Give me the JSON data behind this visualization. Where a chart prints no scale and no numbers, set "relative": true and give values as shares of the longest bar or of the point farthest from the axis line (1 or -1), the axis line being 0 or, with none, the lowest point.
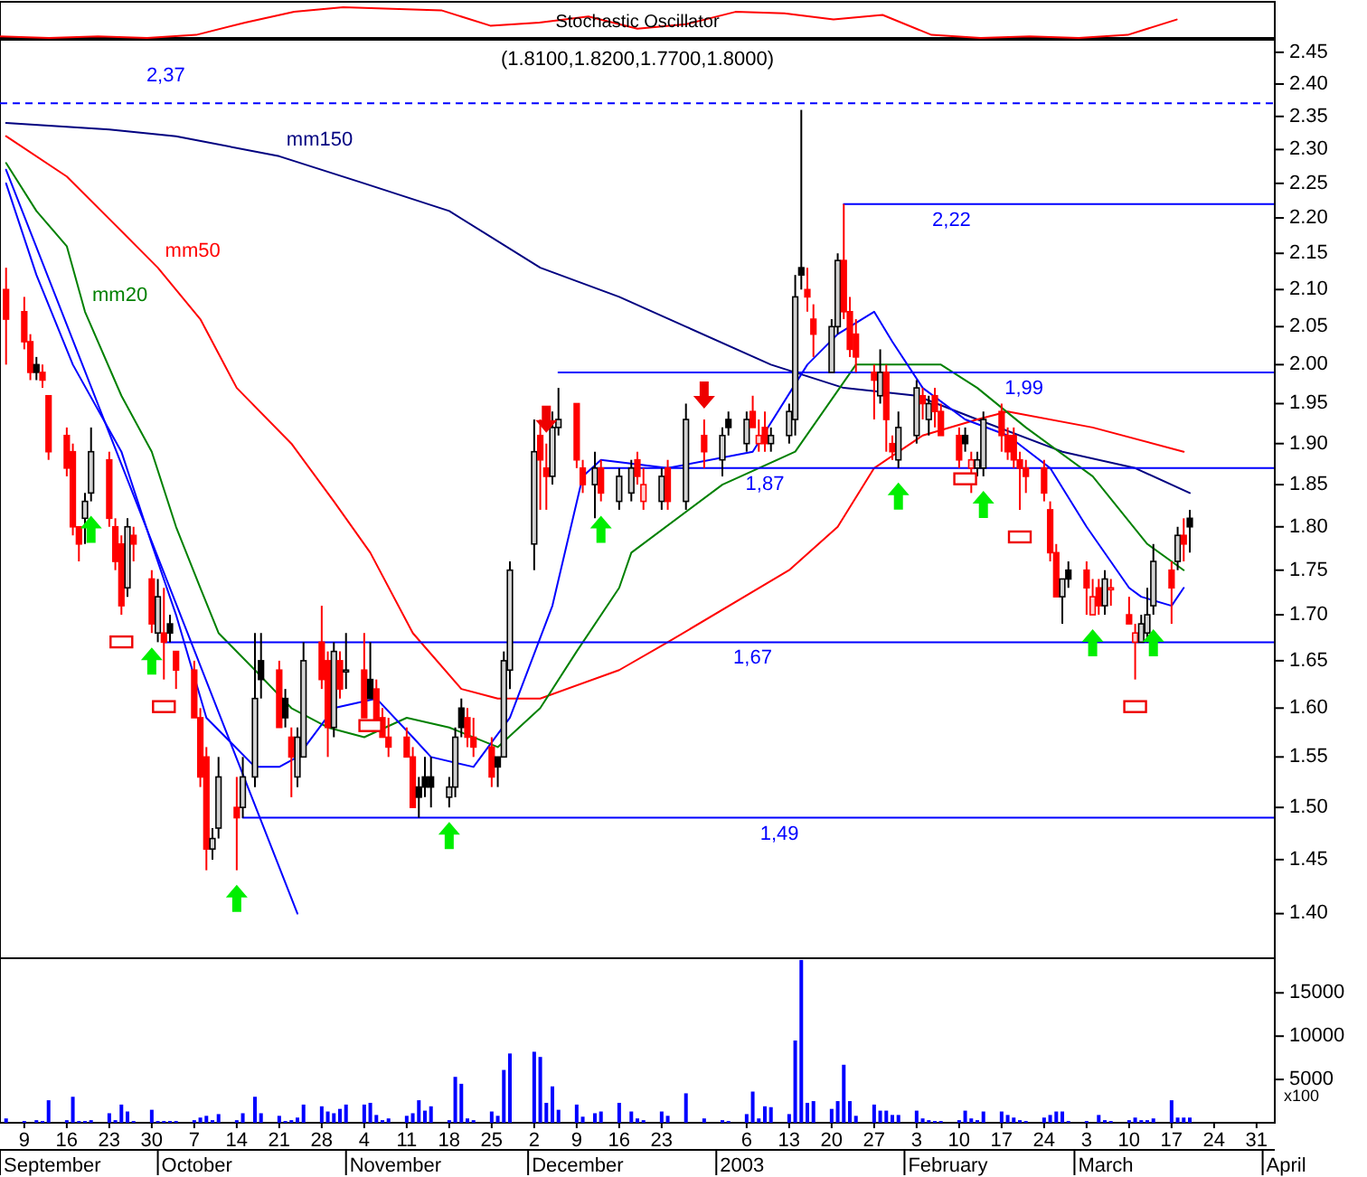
{
  "chart_data": [
    {
      "type": "line",
      "title": "Stochastic Oscillator",
      "relative": true,
      "tick_labels": false,
      "categories": [
        null,
        null,
        null,
        null,
        null,
        null,
        null,
        null,
        null,
        null,
        null,
        null,
        null,
        null,
        null,
        null,
        null,
        null,
        null,
        null,
        null,
        null,
        null,
        null,
        null,
        null,
        null
      ],
      "series": [
        {
          "type": "line",
          "color": "#ff0000",
          "values": [
            0.05,
            0,
            0.05,
            0,
            0.1,
            0.5,
            0.85,
            1,
            0.95,
            0.9,
            0.4,
            0.5,
            0.7,
            0.3,
            0.45,
            0.85,
            0.8,
            0.6,
            0.75,
            0.1,
            0,
            0.05,
            0,
            0.1,
            0.6,
            null,
            null
          ]
        }
      ]
    },
    {
      "type": "candlestick",
      "title": "(1.8100,1.8200,1.7700,1.8000)",
      "log": "y",
      "tick_labels": "y",
      "xlim": [
        "2002-09-05",
        "2003-04-03"
      ],
      "ylim": [
        1.36,
        2.47
      ],
      "yticks": [
        {
          "value": 1.4,
          "label": "1.40"
        },
        {
          "value": 1.45,
          "label": "1.45"
        },
        {
          "value": 1.5,
          "label": "1.50"
        },
        {
          "value": 1.55,
          "label": "1.55"
        },
        {
          "value": 1.6,
          "label": "1.60"
        },
        {
          "value": 1.65,
          "label": "1.65"
        },
        {
          "value": 1.7,
          "label": "1.70"
        },
        {
          "value": 1.75,
          "label": "1.75"
        },
        {
          "value": 1.8,
          "label": "1.80"
        },
        {
          "value": 1.85,
          "label": "1.85"
        },
        {
          "value": 1.9,
          "label": "1.90"
        },
        {
          "value": 1.95,
          "label": "1.95"
        },
        {
          "value": 2.0,
          "label": "2.00"
        },
        {
          "value": 2.05,
          "label": "2.05"
        },
        {
          "value": 2.1,
          "label": "2.10"
        },
        {
          "value": 2.15,
          "label": "2.15"
        },
        {
          "value": 2.2,
          "label": "2.20"
        },
        {
          "value": 2.25,
          "label": "2.25"
        },
        {
          "value": 2.3,
          "label": "2.30"
        },
        {
          "value": 2.35,
          "label": "2.35"
        },
        {
          "value": 2.4,
          "label": "2.40"
        },
        {
          "value": 2.45,
          "label": "2.45"
        }
      ],
      "colors": [
        "#ff0000",
        "#ff0000",
        "#ff0000",
        "#000000",
        "#ff0000",
        "#ff0000",
        "#ff0000",
        "#ff0000",
        "#ff0000",
        "#000000",
        "#000000",
        "#ff0000",
        "#ff0000",
        "#ff0000",
        "#000000",
        "#ff0000",
        "#ff0000",
        "#000000",
        "#ff0000",
        "#000000",
        "#ff0000",
        "#ff0000",
        "#ff0000",
        "#ff0000",
        "#000000",
        "#000000",
        "#ff0000",
        "#000000",
        "#000000",
        "#000000",
        "#ff0000",
        "#000000",
        "#ff0000",
        "#000000",
        "#000000",
        "#ff0000",
        "#ff0000",
        "#000000",
        "#ff0000",
        "#000000",
        "#ff0000",
        "#000000",
        "#ff0000",
        "#ff0000",
        "#ff0000",
        "#ff0000",
        "#ff0000",
        "#000000",
        "#000000",
        "#000000",
        "#000000",
        "#000000",
        "#000000",
        "#ff0000",
        "#ff0000",
        "#ff0000",
        "#000000",
        "#000000",
        "#000000",
        "#000000",
        "#ff0000",
        "#ff0000",
        "#000000",
        "#000000",
        "#ff0000",
        "#ff0000",
        "#000000",
        "#ff0000",
        "#000000",
        "#000000",
        "#ff0000",
        "#ff0000",
        "#000000",
        "#ff0000",
        "#000000",
        "#ff0000",
        "#000000",
        "#000000",
        "#000000",
        "#ff0000",
        "#ff0000",
        "#ff0000",
        "#000000",
        "#000000",
        "#000000",
        "#000000",
        "#ff0000",
        "#ff0000",
        "#000000",
        "#000000",
        "#ff0000",
        "#ff0000",
        "#ff0000",
        "#ff0000",
        "#000000",
        "#ff0000",
        "#ff0000",
        "#000000",
        "#000000",
        "#ff0000",
        "#000000",
        "#ff0000",
        "#ff0000",
        "#ff0000",
        "#000000",
        "#ff0000",
        "#000000",
        "#000000",
        "#ff0000",
        "#ff0000",
        "#ff0000",
        "#ff0000",
        "#ff0000",
        "#ff0000",
        "#ff0000",
        "#ff0000",
        "#000000",
        "#000000",
        "#ff0000",
        "#ff0000",
        "#ff0000",
        "#000000",
        "#ff0000",
        "#ff0000",
        "#ff0000",
        "#000000",
        "#000000",
        "#000000",
        "#ff0000",
        "#000000",
        "#ff0000",
        "#000000"
      ],
      "x": [
        "2002-09-06",
        "2002-09-09",
        "2002-09-10",
        "2002-09-11",
        "2002-09-12",
        "2002-09-13",
        "2002-09-16",
        "2002-09-17",
        "2002-09-18",
        "2002-09-19",
        "2002-09-20",
        "2002-09-23",
        "2002-09-24",
        "2002-09-25",
        "2002-09-26",
        "2002-09-27",
        "2002-09-30",
        "2002-10-01",
        "2002-10-02",
        "2002-10-03",
        "2002-10-04",
        "2002-10-07",
        "2002-10-08",
        "2002-10-09",
        "2002-10-10",
        "2002-10-11",
        "2002-10-14",
        "2002-10-15",
        "2002-10-17",
        "2002-10-18",
        "2002-10-21",
        "2002-10-22",
        "2002-10-23",
        "2002-10-24",
        "2002-10-25",
        "2002-10-28",
        "2002-10-29",
        "2002-10-30",
        "2002-10-31",
        "2002-11-01",
        "2002-11-04",
        "2002-11-05",
        "2002-11-06",
        "2002-11-07",
        "2002-11-08",
        "2002-11-11",
        "2002-11-12",
        "2002-11-13",
        "2002-11-14",
        "2002-11-15",
        "2002-11-18",
        "2002-11-19",
        "2002-11-20",
        "2002-11-21",
        "2002-11-22",
        "2002-11-25",
        "2002-11-26",
        "2002-11-27",
        "2002-11-28",
        "2002-12-02",
        "2002-12-03",
        "2002-12-04",
        "2002-12-05",
        "2002-12-06",
        "2002-12-09",
        "2002-12-10",
        "2002-12-12",
        "2002-12-13",
        "2002-12-16",
        "2002-12-18",
        "2002-12-19",
        "2002-12-20",
        "2002-12-23",
        "2002-12-24",
        "2002-12-27",
        "2002-12-30",
        "2003-01-02",
        "2003-01-03",
        "2003-01-06",
        "2003-01-07",
        "2003-01-08",
        "2003-01-09",
        "2003-01-10",
        "2003-01-13",
        "2003-01-14",
        "2003-01-15",
        "2003-01-16",
        "2003-01-17",
        "2003-01-20",
        "2003-01-21",
        "2003-01-22",
        "2003-01-23",
        "2003-01-24",
        "2003-01-27",
        "2003-01-28",
        "2003-01-29",
        "2003-01-30",
        "2003-01-31",
        "2003-02-03",
        "2003-02-04",
        "2003-02-05",
        "2003-02-06",
        "2003-02-07",
        "2003-02-10",
        "2003-02-11",
        "2003-02-12",
        "2003-02-13",
        "2003-02-14",
        "2003-02-17",
        "2003-02-18",
        "2003-02-19",
        "2003-02-20",
        "2003-02-21",
        "2003-02-24",
        "2003-02-25",
        "2003-02-26",
        "2003-02-27",
        "2003-02-28",
        "2003-03-03",
        "2003-03-04",
        "2003-03-05",
        "2003-03-06",
        "2003-03-07",
        "2003-03-10",
        "2003-03-11",
        "2003-03-12",
        "2003-03-13",
        "2003-03-14",
        "2003-03-17",
        "2003-03-18",
        "2003-03-19",
        "2003-03-20"
      ],
      "ohlc": [
        [
          2.1,
          2.13,
          2.0,
          2.06
        ],
        [
          2.07,
          2.09,
          2.02,
          2.03
        ],
        [
          2.03,
          2.04,
          1.98,
          1.99
        ],
        [
          2.0,
          2.01,
          1.98,
          1.99
        ],
        [
          1.99,
          2.0,
          1.97,
          1.98
        ],
        [
          1.96,
          1.96,
          1.88,
          1.89
        ],
        [
          1.91,
          1.92,
          1.86,
          1.87
        ],
        [
          1.89,
          1.9,
          1.79,
          1.8
        ],
        [
          1.8,
          1.8,
          1.76,
          1.78
        ],
        [
          1.81,
          1.84,
          1.78,
          1.83
        ],
        [
          1.84,
          1.92,
          1.83,
          1.89
        ],
        [
          1.88,
          1.89,
          1.8,
          1.81
        ],
        [
          1.8,
          1.81,
          1.75,
          1.76
        ],
        [
          1.78,
          1.79,
          1.7,
          1.71
        ],
        [
          1.73,
          1.81,
          1.72,
          1.8
        ],
        [
          1.79,
          1.8,
          1.76,
          1.78
        ],
        [
          1.74,
          1.75,
          1.68,
          1.69
        ],
        [
          1.68,
          1.74,
          1.67,
          1.72
        ],
        [
          1.68,
          1.73,
          1.63,
          1.67
        ],
        [
          1.69,
          1.7,
          1.67,
          1.68
        ],
        [
          1.66,
          1.66,
          1.62,
          1.64
        ],
        [
          1.64,
          1.65,
          1.59,
          1.59
        ],
        [
          1.59,
          1.6,
          1.52,
          1.53
        ],
        [
          1.55,
          1.56,
          1.44,
          1.46
        ],
        [
          1.46,
          1.48,
          1.45,
          1.47
        ],
        [
          1.48,
          1.55,
          1.47,
          1.53
        ],
        [
          1.5,
          1.53,
          1.44,
          1.49
        ],
        [
          1.5,
          1.55,
          1.49,
          1.53
        ],
        [
          1.53,
          1.68,
          1.52,
          1.61
        ],
        [
          1.65,
          1.68,
          1.61,
          1.63
        ],
        [
          1.64,
          1.65,
          1.58,
          1.58
        ],
        [
          1.61,
          1.62,
          1.58,
          1.59
        ],
        [
          1.57,
          1.58,
          1.51,
          1.55
        ],
        [
          1.53,
          1.58,
          1.52,
          1.57
        ],
        [
          1.55,
          1.67,
          1.55,
          1.65
        ],
        [
          1.67,
          1.71,
          1.62,
          1.63
        ],
        [
          1.65,
          1.66,
          1.55,
          1.58
        ],
        [
          1.58,
          1.67,
          1.57,
          1.66
        ],
        [
          1.65,
          1.66,
          1.61,
          1.62
        ],
        [
          1.64,
          1.68,
          1.62,
          1.64
        ],
        [
          1.64,
          1.68,
          1.59,
          1.59
        ],
        [
          1.63,
          1.67,
          1.61,
          1.61
        ],
        [
          1.62,
          1.63,
          1.58,
          1.58
        ],
        [
          1.59,
          1.6,
          1.57,
          1.57
        ],
        [
          1.57,
          1.59,
          1.55,
          1.56
        ],
        [
          1.57,
          1.58,
          1.55,
          1.55
        ],
        [
          1.55,
          1.56,
          1.5,
          1.5
        ],
        [
          1.52,
          1.53,
          1.49,
          1.51
        ],
        [
          1.53,
          1.55,
          1.51,
          1.52
        ],
        [
          1.53,
          1.55,
          1.5,
          1.52
        ],
        [
          1.51,
          1.53,
          1.5,
          1.52
        ],
        [
          1.52,
          1.58,
          1.51,
          1.57
        ],
        [
          1.6,
          1.61,
          1.57,
          1.58
        ],
        [
          1.59,
          1.6,
          1.56,
          1.57
        ],
        [
          1.57,
          1.59,
          1.55,
          1.56
        ],
        [
          1.56,
          1.57,
          1.52,
          1.53
        ],
        [
          1.55,
          1.55,
          1.52,
          1.54
        ],
        [
          1.55,
          1.66,
          1.55,
          1.65
        ],
        [
          1.64,
          1.76,
          1.62,
          1.75
        ],
        [
          1.78,
          1.93,
          1.75,
          1.89
        ],
        [
          1.91,
          1.93,
          1.82,
          1.88
        ],
        [
          1.87,
          1.9,
          1.82,
          1.86
        ],
        [
          1.86,
          1.94,
          1.85,
          1.92
        ],
        [
          1.92,
          1.97,
          1.91,
          1.93
        ],
        [
          1.95,
          1.95,
          1.87,
          1.88
        ],
        [
          1.87,
          1.88,
          1.84,
          1.85
        ],
        [
          1.85,
          1.89,
          1.81,
          1.87
        ],
        [
          1.87,
          1.88,
          1.83,
          1.84
        ],
        [
          1.83,
          1.87,
          1.82,
          1.86
        ],
        [
          1.84,
          1.88,
          1.83,
          1.87
        ],
        [
          1.88,
          1.89,
          1.85,
          1.86
        ],
        [
          1.83,
          1.87,
          1.82,
          1.85
        ],
        [
          1.83,
          1.87,
          1.82,
          1.86
        ],
        [
          1.87,
          1.88,
          1.82,
          1.83
        ],
        [
          1.83,
          1.95,
          1.82,
          1.93
        ],
        [
          1.91,
          1.93,
          1.87,
          1.89
        ],
        [
          1.88,
          1.92,
          1.86,
          1.91
        ],
        [
          1.93,
          1.94,
          1.91,
          1.92
        ],
        [
          1.9,
          1.94,
          1.89,
          1.93
        ],
        [
          1.94,
          1.96,
          1.92,
          1.92
        ],
        [
          1.9,
          1.93,
          1.89,
          1.91
        ],
        [
          1.92,
          1.94,
          1.89,
          1.9
        ],
        [
          1.9,
          1.92,
          1.89,
          1.91
        ],
        [
          1.91,
          1.95,
          1.9,
          1.94
        ],
        [
          1.93,
          2.12,
          1.91,
          2.09
        ],
        [
          2.13,
          2.36,
          2.1,
          2.12
        ],
        [
          2.1,
          2.13,
          2.07,
          2.09
        ],
        [
          2.06,
          2.08,
          2.01,
          2.04
        ],
        [
          1.99,
          2.06,
          1.99,
          2.05
        ],
        [
          2.05,
          2.15,
          2.04,
          2.14
        ],
        [
          2.14,
          2.22,
          2.06,
          2.07
        ],
        [
          2.07,
          2.09,
          2.01,
          2.02
        ],
        [
          2.04,
          2.06,
          1.99,
          2.01
        ],
        [
          1.99,
          2.0,
          1.93,
          1.98
        ],
        [
          1.96,
          2.02,
          1.95,
          1.99
        ],
        [
          1.99,
          2.0,
          1.89,
          1.93
        ],
        [
          1.9,
          1.91,
          1.88,
          1.89
        ],
        [
          1.88,
          1.94,
          1.87,
          1.92
        ],
        [
          1.91,
          1.98,
          1.9,
          1.97
        ],
        [
          1.96,
          1.97,
          1.93,
          1.95
        ],
        [
          1.93,
          1.96,
          1.91,
          1.95
        ],
        [
          1.96,
          1.97,
          1.92,
          1.94
        ],
        [
          1.94,
          1.95,
          1.91,
          1.91
        ],
        [
          1.91,
          1.92,
          1.87,
          1.88
        ],
        [
          1.91,
          1.92,
          1.89,
          1.9
        ],
        [
          1.87,
          1.89,
          1.84,
          1.88
        ],
        [
          1.87,
          1.89,
          1.86,
          1.88
        ],
        [
          1.87,
          1.94,
          1.86,
          1.93
        ],
        [
          1.94,
          1.95,
          1.89,
          1.91
        ],
        [
          1.91,
          1.92,
          1.88,
          1.89
        ],
        [
          1.91,
          1.92,
          1.87,
          1.88
        ],
        [
          1.88,
          1.89,
          1.82,
          1.87
        ],
        [
          1.87,
          1.88,
          1.84,
          1.86
        ],
        [
          1.87,
          1.88,
          1.83,
          1.84
        ],
        [
          1.82,
          1.83,
          1.76,
          1.77
        ],
        [
          1.77,
          1.78,
          1.72,
          1.72
        ],
        [
          1.72,
          1.74,
          1.69,
          1.74
        ],
        [
          1.75,
          1.76,
          1.73,
          1.74
        ],
        [
          1.75,
          1.76,
          1.7,
          1.73
        ],
        [
          1.7,
          1.74,
          1.7,
          1.72
        ],
        [
          1.73,
          1.74,
          1.7,
          1.71
        ],
        [
          1.71,
          1.75,
          1.7,
          1.74
        ],
        [
          1.73,
          1.74,
          1.71,
          1.73
        ],
        [
          1.7,
          1.72,
          1.69,
          1.69
        ],
        [
          1.67,
          1.69,
          1.63,
          1.68
        ],
        [
          1.67,
          1.7,
          1.67,
          1.69
        ],
        [
          1.68,
          1.73,
          1.67,
          1.7
        ],
        [
          1.71,
          1.78,
          1.7,
          1.76
        ],
        [
          1.75,
          1.76,
          1.69,
          1.73
        ],
        [
          1.76,
          1.8,
          1.75,
          1.79
        ],
        [
          1.79,
          1.81,
          1.76,
          1.78
        ],
        [
          1.81,
          1.82,
          1.77,
          1.8
        ]
      ],
      "ref_lines": [
        {
          "axis": "y",
          "value": 2.37,
          "label": "2,37",
          "color": "#0000ff",
          "line_style": "dashed"
        }
      ],
      "series": [
        {
          "type": "line",
          "name": "mm150",
          "color": "#000080",
          "x": [
            "2002-09-06",
            "2002-09-23",
            "2002-10-04",
            "2002-10-21",
            "2002-11-04",
            "2002-11-18",
            "2002-12-03",
            "2002-12-16",
            "2002-12-27",
            "2003-01-10",
            "2003-01-22",
            "2003-02-03",
            "2003-02-13",
            "2003-02-27",
            "2003-03-11",
            "2003-03-20"
          ],
          "values": [
            2.34,
            2.33,
            2.32,
            2.29,
            2.25,
            2.21,
            2.13,
            2.09,
            2.05,
            2.0,
            1.97,
            1.96,
            1.93,
            1.89,
            1.87,
            1.84
          ]
        },
        {
          "type": "line",
          "name": "mm50",
          "color": "#ff0000",
          "x": [
            "2002-09-06",
            "2002-09-16",
            "2002-09-24",
            "2002-10-01",
            "2002-10-08",
            "2002-10-14",
            "2002-10-23",
            "2002-10-30",
            "2002-11-05",
            "2002-11-12",
            "2002-11-20",
            "2002-11-26",
            "2002-12-03",
            "2002-12-16",
            "2002-12-24",
            "2003-01-13",
            "2003-01-21",
            "2003-01-27",
            "2003-02-04",
            "2003-02-13",
            "2003-02-18",
            "2003-03-04",
            "2003-03-19"
          ],
          "values": [
            2.32,
            2.26,
            2.19,
            2.13,
            2.06,
            1.97,
            1.9,
            1.83,
            1.77,
            1.68,
            1.62,
            1.61,
            1.61,
            1.64,
            1.67,
            1.75,
            1.8,
            1.87,
            1.91,
            1.93,
            1.94,
            1.92,
            1.89
          ]
        },
        {
          "type": "line",
          "name": "mm20",
          "color": "#008000",
          "x": [
            "2002-09-06",
            "2002-09-11",
            "2002-09-16",
            "2002-09-19",
            "2002-09-25",
            "2002-09-30",
            "2002-10-04",
            "2002-10-08",
            "2002-10-11",
            "2002-10-17",
            "2002-10-23",
            "2002-10-29",
            "2002-11-04",
            "2002-11-11",
            "2002-11-18",
            "2002-11-26",
            "2002-12-03",
            "2002-12-09",
            "2002-12-16",
            "2002-12-18",
            "2003-01-02",
            "2003-01-14",
            "2003-01-24",
            "2003-01-28",
            "2003-02-07",
            "2003-02-13",
            "2003-02-21",
            "2003-03-04",
            "2003-03-13",
            "2003-03-19"
          ],
          "values": [
            2.28,
            2.21,
            2.16,
            2.07,
            1.96,
            1.89,
            1.8,
            1.73,
            1.68,
            1.64,
            1.6,
            1.58,
            1.57,
            1.59,
            1.58,
            1.56,
            1.6,
            1.66,
            1.73,
            1.77,
            1.85,
            1.89,
            2.0,
            2.0,
            2.0,
            1.97,
            1.92,
            1.86,
            1.78,
            1.75
          ]
        },
        {
          "type": "line",
          "color": "#0000ff",
          "x": [
            "2002-09-06",
            "2002-09-11",
            "2002-09-17",
            "2002-09-25",
            "2002-09-30",
            "2002-10-04",
            "2002-10-09",
            "2002-10-17",
            "2002-10-21",
            "2002-10-24",
            "2002-10-30",
            "2002-11-06",
            "2002-11-12",
            "2002-11-15",
            "2002-11-22",
            "2002-11-28",
            "2002-12-05",
            "2002-12-10",
            "2002-12-13",
            "2002-12-24",
            "2003-01-07",
            "2003-01-16",
            "2003-01-21",
            "2003-01-27",
            "2003-01-30",
            "2003-02-04",
            "2003-02-11",
            "2003-02-18",
            "2003-02-25",
            "2003-03-03",
            "2003-03-10",
            "2003-03-12",
            "2003-03-17",
            "2003-03-19"
          ],
          "values": [
            2.25,
            2.12,
            2.0,
            1.89,
            1.78,
            1.7,
            1.59,
            1.54,
            1.54,
            1.55,
            1.6,
            1.61,
            1.57,
            1.55,
            1.54,
            1.59,
            1.71,
            1.86,
            1.88,
            1.87,
            1.89,
            2.0,
            2.04,
            2.07,
            2.03,
            1.97,
            1.93,
            1.91,
            1.87,
            1.8,
            1.73,
            1.72,
            1.71,
            1.73
          ]
        },
        {
          "type": "line",
          "color": "#0000ff",
          "x": [
            "2002-09-06",
            "2002-10-24"
          ],
          "values": [
            2.27,
            1.4
          ]
        },
        {
          "type": "line",
          "name": "2,22",
          "color": "#0000ff",
          "x": [
            "2003-01-22",
            "2003-04-03"
          ],
          "values": [
            2.22,
            2.22
          ]
        },
        {
          "type": "line",
          "name": "1,99",
          "color": "#0000ff",
          "x": [
            "2002-12-06",
            "2003-04-03"
          ],
          "values": [
            1.99,
            1.99
          ]
        },
        {
          "type": "line",
          "name": "1,87",
          "color": "#0000ff",
          "x": [
            "2002-12-12",
            "2003-04-03"
          ],
          "values": [
            1.87,
            1.87
          ]
        },
        {
          "type": "line",
          "name": "1,67",
          "color": "#0000ff",
          "x": [
            "2002-10-02",
            "2003-04-03"
          ],
          "values": [
            1.67,
            1.67
          ]
        },
        {
          "type": "line",
          "name": "1,49",
          "color": "#0000ff",
          "x": [
            "2002-10-15",
            "2003-04-03"
          ],
          "values": [
            1.49,
            1.49
          ]
        }
      ]
    },
    {
      "type": "bar",
      "ylabel": "x100",
      "color": "#0000ff",
      "xlim": [
        "2002-09-05",
        "2003-04-03"
      ],
      "ylim": [
        0,
        19000
      ],
      "yticks": [
        5000,
        10000,
        15000
      ],
      "xticks": [
        {
          "value": "2002-09-09",
          "label": "9"
        },
        {
          "value": "2002-09-16",
          "label": "16"
        },
        {
          "value": "2002-09-23",
          "label": "23"
        },
        {
          "value": "2002-09-30",
          "label": "30"
        },
        {
          "value": "2002-10-07",
          "label": "7"
        },
        {
          "value": "2002-10-14",
          "label": "14"
        },
        {
          "value": "2002-10-21",
          "label": "21"
        },
        {
          "value": "2002-10-28",
          "label": "28"
        },
        {
          "value": "2002-11-04",
          "label": "4"
        },
        {
          "value": "2002-11-11",
          "label": "11"
        },
        {
          "value": "2002-11-18",
          "label": "18"
        },
        {
          "value": "2002-11-25",
          "label": "25"
        },
        {
          "value": "2002-12-02",
          "label": "2"
        },
        {
          "value": "2002-12-09",
          "label": "9"
        },
        {
          "value": "2002-12-16",
          "label": "16"
        },
        {
          "value": "2002-12-23",
          "label": "23"
        },
        {
          "value": "2003-01-06",
          "label": "6"
        },
        {
          "value": "2003-01-13",
          "label": "13"
        },
        {
          "value": "2003-01-20",
          "label": "20"
        },
        {
          "value": "2003-01-27",
          "label": "27"
        },
        {
          "value": "2003-02-03",
          "label": "3"
        },
        {
          "value": "2003-02-10",
          "label": "10"
        },
        {
          "value": "2003-02-17",
          "label": "17"
        },
        {
          "value": "2003-02-24",
          "label": "24"
        },
        {
          "value": "2003-03-03",
          "label": "3"
        },
        {
          "value": "2003-03-10",
          "label": "10"
        },
        {
          "value": "2003-03-17",
          "label": "17"
        },
        {
          "value": "2003-03-24",
          "label": "24"
        },
        {
          "value": "2003-03-31",
          "label": "31"
        }
      ],
      "annotations": [
        "September",
        "October",
        "November",
        "December",
        "2003",
        "February",
        "March",
        "April"
      ],
      "x": [
        "2002-09-06",
        "2002-09-09",
        "2002-09-11",
        "2002-09-12",
        "2002-09-13",
        "2002-09-16",
        "2002-09-17",
        "2002-09-18",
        "2002-09-19",
        "2002-09-20",
        "2002-09-23",
        "2002-09-24",
        "2002-09-25",
        "2002-09-26",
        "2002-09-27",
        "2002-09-30",
        "2002-10-01",
        "2002-10-02",
        "2002-10-03",
        "2002-10-04",
        "2002-10-07",
        "2002-10-08",
        "2002-10-09",
        "2002-10-10",
        "2002-10-11",
        "2002-10-14",
        "2002-10-15",
        "2002-10-17",
        "2002-10-18",
        "2002-10-21",
        "2002-10-22",
        "2002-10-23",
        "2002-10-24",
        "2002-10-25",
        "2002-10-28",
        "2002-10-29",
        "2002-10-30",
        "2002-10-31",
        "2002-11-01",
        "2002-11-04",
        "2002-11-05",
        "2002-11-06",
        "2002-11-07",
        "2002-11-08",
        "2002-11-11",
        "2002-11-12",
        "2002-11-13",
        "2002-11-14",
        "2002-11-15",
        "2002-11-18",
        "2002-11-19",
        "2002-11-20",
        "2002-11-21",
        "2002-11-22",
        "2002-11-25",
        "2002-11-26",
        "2002-11-27",
        "2002-11-28",
        "2002-12-02",
        "2002-12-03",
        "2002-12-04",
        "2002-12-05",
        "2002-12-06",
        "2002-12-09",
        "2002-12-10",
        "2002-12-12",
        "2002-12-13",
        "2002-12-16",
        "2002-12-18",
        "2002-12-19",
        "2002-12-20",
        "2002-12-23",
        "2002-12-24",
        "2002-12-27",
        "2002-12-30",
        "2003-01-02",
        "2003-01-03",
        "2003-01-06",
        "2003-01-07",
        "2003-01-08",
        "2003-01-09",
        "2003-01-10",
        "2003-01-13",
        "2003-01-14",
        "2003-01-15",
        "2003-01-16",
        "2003-01-17",
        "2003-01-20",
        "2003-01-21",
        "2003-01-22",
        "2003-01-23",
        "2003-01-24",
        "2003-01-27",
        "2003-01-28",
        "2003-01-29",
        "2003-01-30",
        "2003-01-31",
        "2003-02-03",
        "2003-02-04",
        "2003-02-05",
        "2003-02-06",
        "2003-02-07",
        "2003-02-10",
        "2003-02-11",
        "2003-02-12",
        "2003-02-13",
        "2003-02-14",
        "2003-02-17",
        "2003-02-18",
        "2003-02-19",
        "2003-02-20",
        "2003-02-21",
        "2003-02-24",
        "2003-02-25",
        "2003-02-26",
        "2003-02-27",
        "2003-02-28",
        "2003-03-03",
        "2003-03-05",
        "2003-03-06",
        "2003-03-07",
        "2003-03-10",
        "2003-03-11",
        "2003-03-12",
        "2003-03-13",
        "2003-03-14",
        "2003-03-17",
        "2003-03-18",
        "2003-03-19",
        "2003-03-20"
      ],
      "values": [
        500,
        200,
        300,
        200,
        2600,
        300,
        3000,
        200,
        200,
        300,
        1100,
        300,
        2100,
        1300,
        200,
        1500,
        200,
        200,
        200,
        200,
        300,
        600,
        800,
        300,
        1000,
        300,
        1100,
        3000,
        1100,
        800,
        200,
        300,
        600,
        2100,
        1900,
        1300,
        1100,
        1600,
        2100,
        2100,
        2300,
        900,
        300,
        500,
        800,
        1100,
        2600,
        1400,
        1900,
        300,
        5300,
        4500,
        500,
        300,
        1300,
        800,
        6100,
        8000,
        8200,
        7600,
        2300,
        4200,
        1500,
        2100,
        700,
        1100,
        1300,
        2300,
        1300,
        500,
        300,
        1300,
        800,
        3400,
        500,
        300,
        200,
        1000,
        3600,
        500,
        1900,
        1800,
        1000,
        9500,
        18800,
        2300,
        2500,
        1600,
        2500,
        6700,
        2500,
        800,
        2100,
        1400,
        1400,
        900,
        900,
        1400,
        500,
        300,
        200,
        200,
        300,
        1400,
        500,
        300,
        1300,
        1300,
        900,
        600,
        300,
        200,
        600,
        900,
        1300,
        1300,
        200,
        200,
        900,
        300,
        200,
        300,
        600,
        300,
        300,
        500,
        2600,
        600,
        600,
        600
      ]
    }
  ]
}
